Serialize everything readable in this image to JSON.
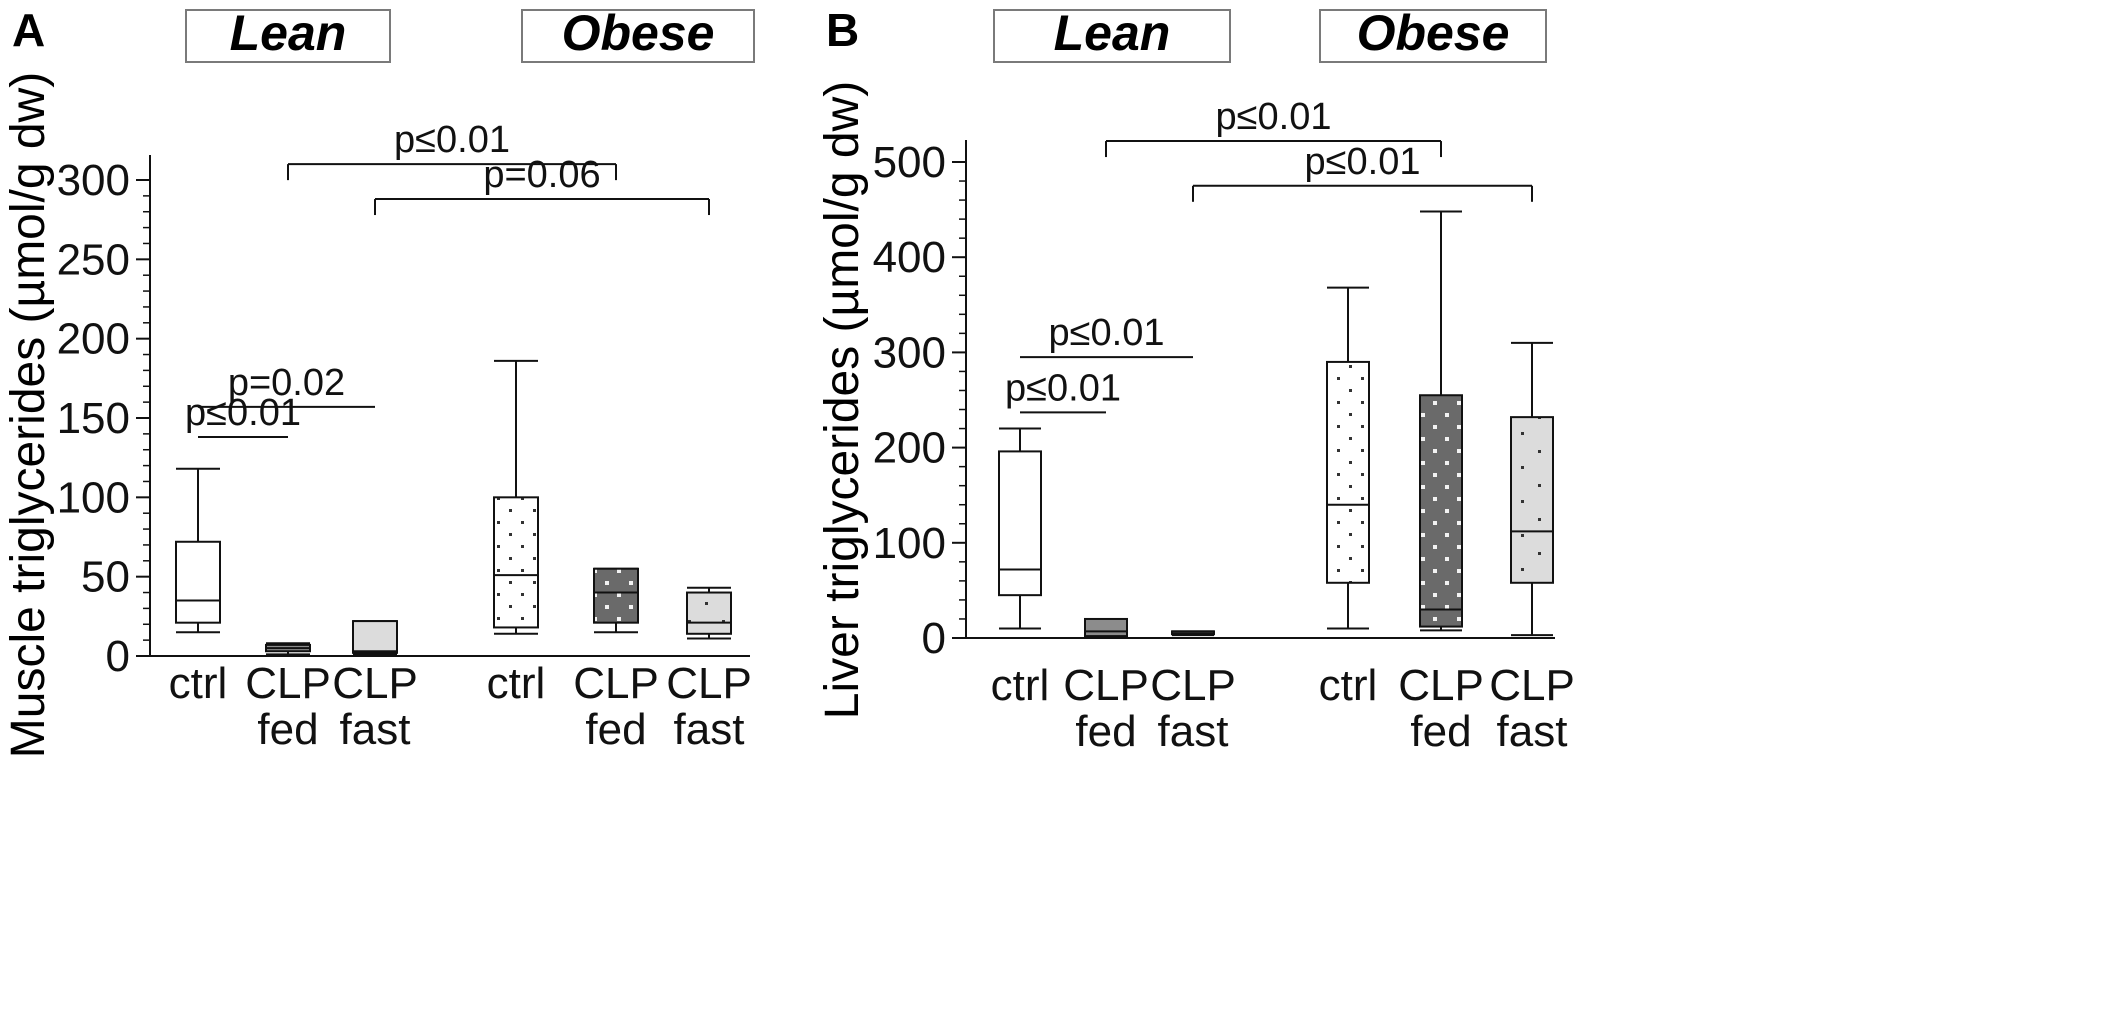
{
  "figure": {
    "panels": [
      {
        "letter": "A",
        "group_labels": [
          "Lean",
          "Obese"
        ]
      },
      {
        "letter": "B",
        "group_labels": [
          "Lean",
          "Obese"
        ]
      }
    ]
  },
  "colors": {
    "stroke": "#111111",
    "lean_ctrl_fill": "#ffffff",
    "lean_clp_fed_fill": "#8c8c8c",
    "lean_clp_fast_fill": "#dcdcdc",
    "obese_ctrl_fill": "#ffffff",
    "obese_clp_fed_fill": "#6a6a6a",
    "obese_clp_fast_fill": "#dcdcdc"
  },
  "chart_data": [
    {
      "type": "box",
      "panel": "A",
      "ylabel": "Muscle triglycerides (µmol/g dw)",
      "ylim": [
        0,
        300
      ],
      "yticks": [
        0,
        50,
        100,
        150,
        200,
        250,
        300
      ],
      "categories": [
        {
          "label": [
            "ctrl"
          ],
          "group": "Lean",
          "min": 15,
          "q1": 21,
          "median": 35,
          "q3": 72,
          "max": 118,
          "fill": "lean_ctrl_fill",
          "pattern": "none"
        },
        {
          "label": [
            "CLP",
            "fed"
          ],
          "group": "Lean",
          "min": 1,
          "q1": 3,
          "median": 5,
          "q3": 7,
          "max": 8,
          "fill": "lean_clp_fed_fill",
          "pattern": "none"
        },
        {
          "label": [
            "CLP",
            "fast"
          ],
          "group": "Lean",
          "min": 1,
          "q1": 2,
          "median": 3,
          "q3": 22,
          "max": 22,
          "fill": "lean_clp_fast_fill",
          "pattern": "none"
        },
        {
          "label": [
            "ctrl"
          ],
          "group": "Obese",
          "min": 14,
          "q1": 18,
          "median": 51,
          "q3": 100,
          "max": 186,
          "fill": "obese_ctrl_fill",
          "pattern": "dots"
        },
        {
          "label": [
            "CLP",
            "fed"
          ],
          "group": "Obese",
          "min": 15,
          "q1": 21,
          "median": 40,
          "q3": 55,
          "max": 55,
          "fill": "obese_clp_fed_fill",
          "pattern": "dots-light"
        },
        {
          "label": [
            "CLP",
            "fast"
          ],
          "group": "Obese",
          "min": 11,
          "q1": 14,
          "median": 21,
          "q3": 40,
          "max": 43,
          "fill": "obese_clp_fast_fill",
          "pattern": "dots-sparse"
        }
      ],
      "significance": [
        {
          "from": 0,
          "to": 1,
          "label": "p≤0.01",
          "level": 138
        },
        {
          "from": 0,
          "to": 2,
          "label": "p=0.02",
          "level": 157
        },
        {
          "from": 1,
          "to": 4,
          "label": "p≤0.01",
          "level": 310,
          "ticks": "down"
        },
        {
          "from": 2,
          "to": 5,
          "label": "p=0.06",
          "level": 288,
          "ticks": "down"
        }
      ]
    },
    {
      "type": "box",
      "panel": "B",
      "ylabel": "Liver triglycerides (µmol/g dw)",
      "ylim": [
        0,
        500
      ],
      "yticks": [
        0,
        100,
        200,
        300,
        400,
        500
      ],
      "categories": [
        {
          "label": [
            "ctrl"
          ],
          "group": "Lean",
          "min": 10,
          "q1": 45,
          "median": 72,
          "q3": 196,
          "max": 220,
          "fill": "lean_ctrl_fill",
          "pattern": "none"
        },
        {
          "label": [
            "CLP",
            "fed"
          ],
          "group": "Lean",
          "min": 0,
          "q1": 2,
          "median": 7,
          "q3": 20,
          "max": 20,
          "fill": "lean_clp_fed_fill",
          "pattern": "none"
        },
        {
          "label": [
            "CLP",
            "fast"
          ],
          "group": "Lean",
          "min": 3,
          "q1": 4,
          "median": 5,
          "q3": 7,
          "max": 7,
          "fill": "lean_clp_fast_fill",
          "pattern": "none"
        },
        {
          "label": [
            "ctrl"
          ],
          "group": "Obese",
          "min": 10,
          "q1": 58,
          "median": 140,
          "q3": 290,
          "max": 368,
          "fill": "obese_ctrl_fill",
          "pattern": "dots"
        },
        {
          "label": [
            "CLP",
            "fed"
          ],
          "group": "Obese",
          "min": 8,
          "q1": 12,
          "median": 30,
          "q3": 255,
          "max": 448,
          "fill": "obese_clp_fed_fill",
          "pattern": "dots-light"
        },
        {
          "label": [
            "CLP",
            "fast"
          ],
          "group": "Obese",
          "min": 3,
          "q1": 58,
          "median": 112,
          "q3": 232,
          "max": 310,
          "fill": "obese_clp_fast_fill",
          "pattern": "dots-sparse"
        }
      ],
      "significance": [
        {
          "from": 0,
          "to": 1,
          "label": "p≤0.01",
          "level": 237
        },
        {
          "from": 0,
          "to": 2,
          "label": "p≤0.01",
          "level": 295
        },
        {
          "from": 1,
          "to": 4,
          "label": "p≤0.01",
          "level": 522,
          "ticks": "down"
        },
        {
          "from": 2,
          "to": 5,
          "label": "p≤0.01",
          "level": 475,
          "ticks": "down"
        }
      ]
    }
  ]
}
